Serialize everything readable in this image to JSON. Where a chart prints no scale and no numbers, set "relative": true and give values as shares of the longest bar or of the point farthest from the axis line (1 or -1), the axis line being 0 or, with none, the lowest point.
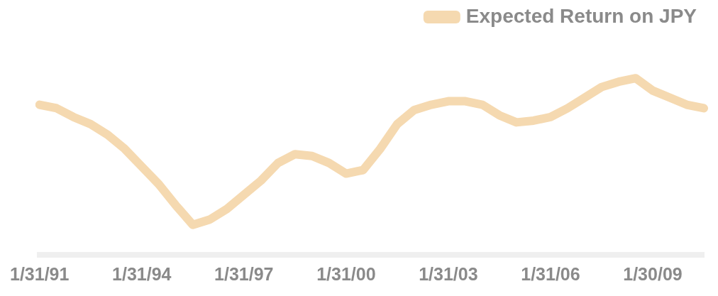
{
  "chart_data": {
    "type": "line",
    "relative": true,
    "categories": [
      "1/31/91",
      null,
      null,
      null,
      null,
      null,
      "1/31/94",
      null,
      null,
      null,
      null,
      null,
      "1/31/97",
      null,
      null,
      null,
      null,
      null,
      "1/31/00",
      null,
      null,
      null,
      null,
      null,
      "1/31/03",
      null,
      null,
      null,
      null,
      null,
      "1/31/06",
      null,
      null,
      null,
      null,
      null,
      "1/30/09",
      null,
      null,
      null
    ],
    "series": [
      {
        "name": "Expected Return on JPY",
        "color": "#f5d9b0",
        "values": [
          0.85,
          0.83,
          0.78,
          0.74,
          0.68,
          0.6,
          0.5,
          0.4,
          0.28,
          0.17,
          0.2,
          0.26,
          0.34,
          0.42,
          0.52,
          0.57,
          0.56,
          0.52,
          0.46,
          0.48,
          0.6,
          0.74,
          0.82,
          0.85,
          0.87,
          0.87,
          0.85,
          0.79,
          0.75,
          0.76,
          0.78,
          0.83,
          0.89,
          0.95,
          0.98,
          1,
          0.93,
          0.89,
          0.85,
          0.83
        ]
      }
    ],
    "legend": "top right",
    "grid": false,
    "marker": "none",
    "line_style": "solid"
  }
}
